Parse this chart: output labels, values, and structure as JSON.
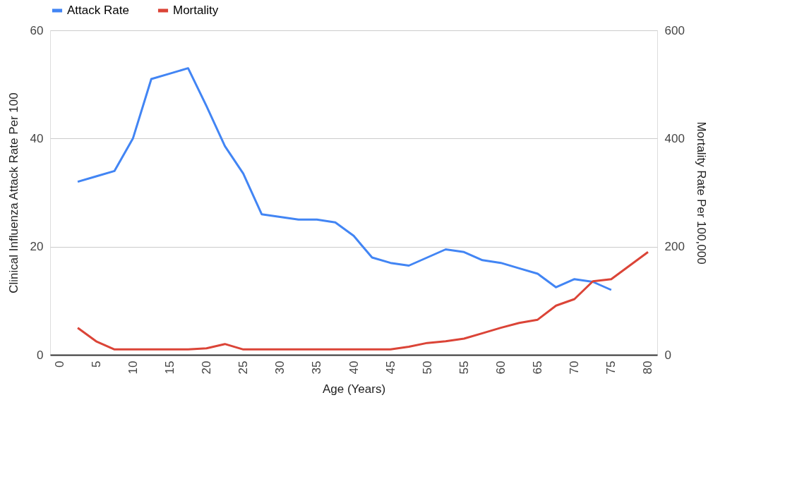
{
  "chart_data": {
    "type": "line",
    "xlabel": "Age (Years)",
    "ylabel": "Clinical Influenza Attack Rate Per 100",
    "y2label": "Mortality Rate Per 100,000",
    "x": [
      2.5,
      5,
      7.5,
      10,
      12.5,
      15,
      17.5,
      20,
      22.5,
      25,
      27.5,
      30,
      32.5,
      35,
      37.5,
      40,
      42.5,
      45,
      47.5,
      50,
      52.5,
      55,
      57.5,
      60,
      62.5,
      65,
      67.5,
      70,
      72.5,
      75,
      77.5,
      80
    ],
    "series": [
      {
        "name": "Attack Rate",
        "color": "#4285f4",
        "values": [
          32,
          33,
          34,
          40,
          51,
          52,
          53,
          46,
          38.6,
          33.5,
          26,
          25.5,
          25,
          25,
          24.5,
          22,
          18,
          17,
          16.5,
          18,
          19.5,
          19,
          17.5,
          17,
          16,
          15,
          12.5,
          14,
          13.5,
          12,
          null,
          null
        ]
      },
      {
        "name": "Mortality",
        "color": "#db4437",
        "axis": "y2",
        "values": [
          50,
          25,
          10,
          10,
          10,
          10,
          10,
          12,
          20,
          10,
          10,
          10,
          10,
          10,
          10,
          10,
          10,
          10,
          15,
          22,
          25,
          30,
          40,
          50,
          59,
          65,
          91,
          103,
          136,
          140,
          165,
          190
        ]
      }
    ],
    "xlim": [
      -1.25,
      81.25
    ],
    "xticks": [
      0,
      5,
      10,
      15,
      20,
      25,
      30,
      35,
      40,
      45,
      50,
      55,
      60,
      65,
      70,
      75,
      80
    ],
    "ylim": [
      0,
      60
    ],
    "yticks": [
      0,
      20,
      40,
      60
    ],
    "y2lim": [
      0,
      600
    ],
    "y2ticks": [
      0,
      200,
      400,
      600
    ],
    "grid": "y",
    "legend": "top",
    "marker": "none",
    "line_style": "solid"
  }
}
